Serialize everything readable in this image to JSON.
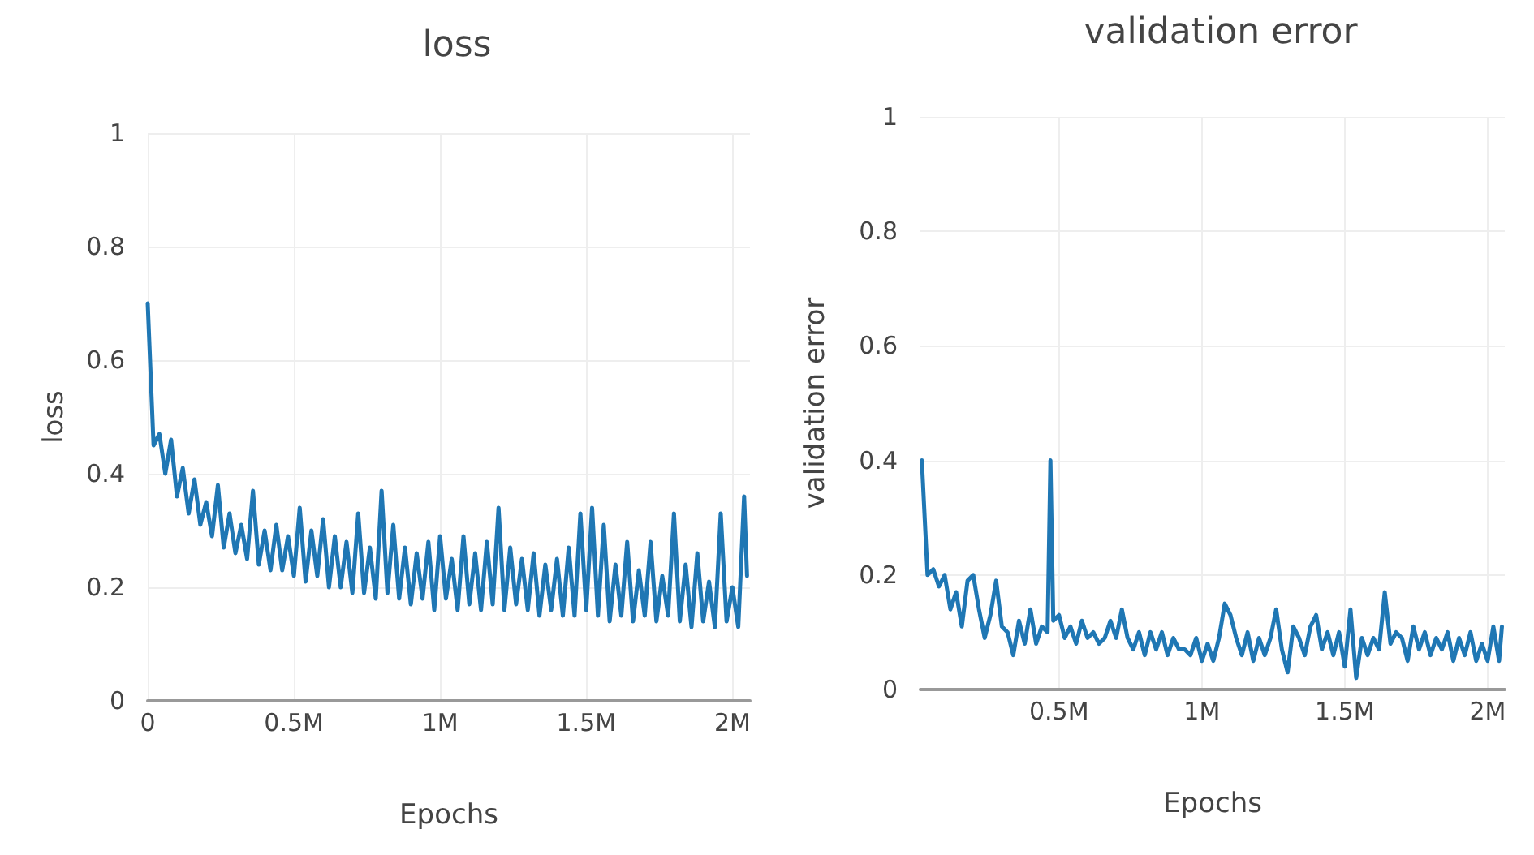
{
  "chart_data": [
    {
      "type": "line",
      "title": "loss",
      "xlabel": "Epochs",
      "ylabel": "loss",
      "grid": true,
      "marker": "none",
      "line_style": "solid",
      "xlim": [
        0,
        2060000
      ],
      "ylim": [
        0,
        1
      ],
      "xticks": [
        0,
        {
          "value": 500000,
          "label": "0.5M"
        },
        {
          "value": 1000000,
          "label": "1M"
        },
        {
          "value": 1500000,
          "label": "1.5M"
        },
        {
          "value": 2000000,
          "label": "2M"
        }
      ],
      "yticks": [
        0,
        0.2,
        0.4,
        0.6,
        0.8,
        1
      ],
      "x": [
        0,
        20000,
        40000,
        60000,
        80000,
        100000,
        120000,
        140000,
        160000,
        180000,
        200000,
        220000,
        240000,
        260000,
        280000,
        300000,
        320000,
        340000,
        360000,
        380000,
        400000,
        420000,
        440000,
        460000,
        480000,
        500000,
        520000,
        540000,
        560000,
        580000,
        600000,
        620000,
        640000,
        660000,
        680000,
        700000,
        720000,
        740000,
        760000,
        780000,
        800000,
        820000,
        840000,
        860000,
        880000,
        900000,
        920000,
        940000,
        960000,
        980000,
        1000000,
        1020000,
        1040000,
        1060000,
        1080000,
        1100000,
        1120000,
        1140000,
        1160000,
        1180000,
        1200000,
        1220000,
        1240000,
        1260000,
        1280000,
        1300000,
        1320000,
        1340000,
        1360000,
        1380000,
        1400000,
        1420000,
        1440000,
        1460000,
        1480000,
        1500000,
        1520000,
        1540000,
        1560000,
        1580000,
        1600000,
        1620000,
        1640000,
        1660000,
        1680000,
        1700000,
        1720000,
        1740000,
        1760000,
        1780000,
        1800000,
        1820000,
        1840000,
        1860000,
        1880000,
        1900000,
        1920000,
        1940000,
        1960000,
        1980000,
        2000000,
        2020000,
        2040000,
        2050000
      ],
      "series": [
        {
          "color": "#1f77b4",
          "values": [
            0.7,
            0.45,
            0.47,
            0.4,
            0.46,
            0.36,
            0.41,
            0.33,
            0.39,
            0.31,
            0.35,
            0.29,
            0.38,
            0.27,
            0.33,
            0.26,
            0.31,
            0.25,
            0.37,
            0.24,
            0.3,
            0.23,
            0.31,
            0.23,
            0.29,
            0.22,
            0.34,
            0.21,
            0.3,
            0.22,
            0.32,
            0.2,
            0.29,
            0.2,
            0.28,
            0.19,
            0.33,
            0.19,
            0.27,
            0.18,
            0.37,
            0.19,
            0.31,
            0.18,
            0.27,
            0.17,
            0.26,
            0.18,
            0.28,
            0.16,
            0.29,
            0.18,
            0.25,
            0.16,
            0.29,
            0.17,
            0.26,
            0.16,
            0.28,
            0.17,
            0.34,
            0.16,
            0.27,
            0.17,
            0.25,
            0.16,
            0.26,
            0.15,
            0.24,
            0.16,
            0.25,
            0.15,
            0.27,
            0.15,
            0.33,
            0.16,
            0.34,
            0.15,
            0.31,
            0.14,
            0.24,
            0.15,
            0.28,
            0.14,
            0.23,
            0.15,
            0.28,
            0.14,
            0.22,
            0.15,
            0.33,
            0.14,
            0.24,
            0.13,
            0.26,
            0.14,
            0.21,
            0.13,
            0.33,
            0.14,
            0.2,
            0.13,
            0.36,
            0.22
          ]
        }
      ]
    },
    {
      "type": "line",
      "title": "validation error",
      "xlabel": "Epochs",
      "ylabel": "validation error",
      "grid": true,
      "marker": "none",
      "line_style": "solid",
      "xlim": [
        15000,
        2060000
      ],
      "ylim": [
        0,
        1
      ],
      "xticks": [
        {
          "value": 500000,
          "label": "0.5M"
        },
        {
          "value": 1000000,
          "label": "1M"
        },
        {
          "value": 1500000,
          "label": "1.5M"
        },
        {
          "value": 2000000,
          "label": "2M"
        }
      ],
      "yticks": [
        0,
        0.2,
        0.4,
        0.6,
        0.8,
        1
      ],
      "x": [
        20000,
        40000,
        60000,
        80000,
        100000,
        120000,
        140000,
        160000,
        180000,
        200000,
        220000,
        240000,
        260000,
        280000,
        300000,
        320000,
        340000,
        360000,
        380000,
        400000,
        420000,
        440000,
        460000,
        470000,
        480000,
        500000,
        520000,
        540000,
        560000,
        580000,
        600000,
        620000,
        640000,
        660000,
        680000,
        700000,
        720000,
        740000,
        760000,
        780000,
        800000,
        820000,
        840000,
        860000,
        880000,
        900000,
        920000,
        940000,
        960000,
        980000,
        1000000,
        1020000,
        1040000,
        1060000,
        1080000,
        1100000,
        1120000,
        1140000,
        1160000,
        1180000,
        1200000,
        1220000,
        1240000,
        1260000,
        1280000,
        1300000,
        1320000,
        1340000,
        1360000,
        1380000,
        1400000,
        1420000,
        1440000,
        1460000,
        1480000,
        1500000,
        1520000,
        1540000,
        1560000,
        1580000,
        1600000,
        1620000,
        1640000,
        1660000,
        1680000,
        1700000,
        1720000,
        1740000,
        1760000,
        1780000,
        1800000,
        1820000,
        1840000,
        1860000,
        1880000,
        1900000,
        1920000,
        1940000,
        1960000,
        1980000,
        2000000,
        2020000,
        2040000,
        2050000
      ],
      "series": [
        {
          "color": "#1f77b4",
          "values": [
            0.4,
            0.2,
            0.21,
            0.18,
            0.2,
            0.14,
            0.17,
            0.11,
            0.19,
            0.2,
            0.14,
            0.09,
            0.13,
            0.19,
            0.11,
            0.1,
            0.06,
            0.12,
            0.08,
            0.14,
            0.08,
            0.11,
            0.1,
            0.4,
            0.12,
            0.13,
            0.09,
            0.11,
            0.08,
            0.12,
            0.09,
            0.1,
            0.08,
            0.09,
            0.12,
            0.09,
            0.14,
            0.09,
            0.07,
            0.1,
            0.06,
            0.1,
            0.07,
            0.1,
            0.06,
            0.09,
            0.07,
            0.07,
            0.06,
            0.09,
            0.05,
            0.08,
            0.05,
            0.09,
            0.15,
            0.13,
            0.09,
            0.06,
            0.1,
            0.05,
            0.09,
            0.06,
            0.09,
            0.14,
            0.07,
            0.03,
            0.11,
            0.09,
            0.06,
            0.11,
            0.13,
            0.07,
            0.1,
            0.06,
            0.1,
            0.04,
            0.14,
            0.02,
            0.09,
            0.06,
            0.09,
            0.07,
            0.17,
            0.08,
            0.1,
            0.09,
            0.05,
            0.11,
            0.07,
            0.1,
            0.06,
            0.09,
            0.07,
            0.1,
            0.05,
            0.09,
            0.06,
            0.1,
            0.05,
            0.08,
            0.05,
            0.11,
            0.05,
            0.11
          ]
        }
      ]
    }
  ]
}
